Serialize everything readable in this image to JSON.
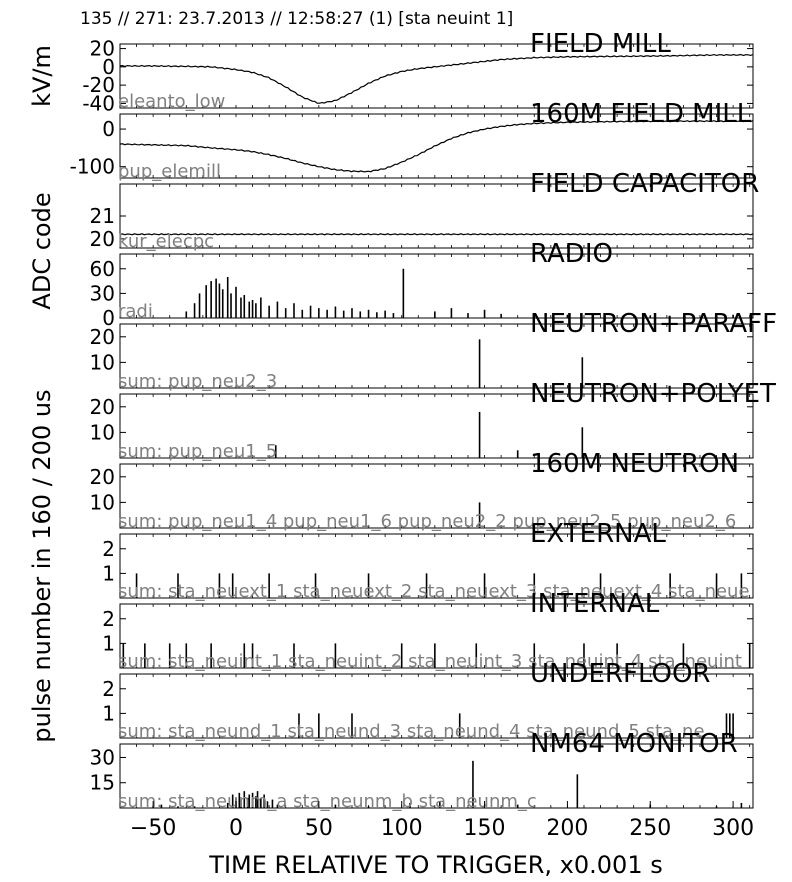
{
  "header": "135 // 271:   23.7.2013 // 12:58:27 (1)  [sta neuint 1]",
  "xlabel": "TIME RELATIVE TO TRIGGER,   x0.001 s",
  "xlim": [
    -70,
    312
  ],
  "xticks": [
    -50,
    0,
    50,
    100,
    150,
    200,
    250,
    300
  ],
  "shared_ylabels": [
    {
      "text": "kV/m",
      "panels": [
        0,
        0
      ]
    },
    {
      "text": "ADC code",
      "panels": [
        2,
        3
      ]
    },
    {
      "text": "pulse number in 160 / 200 us",
      "panels": [
        4,
        10
      ]
    }
  ],
  "chart_data": [
    {
      "type": "line",
      "title": "FIELD MILL",
      "label": "eleanto_low",
      "ylim": [
        -45,
        25
      ],
      "yticks": [
        20,
        0,
        -20,
        -40
      ],
      "x": [
        -70,
        -50,
        -30,
        -15,
        0,
        10,
        20,
        30,
        40,
        50,
        60,
        70,
        80,
        90,
        100,
        110,
        120,
        130,
        140,
        150,
        160,
        170,
        180,
        200,
        230,
        260,
        290,
        300,
        312
      ],
      "values": [
        1,
        1,
        0.5,
        0,
        -3,
        -6,
        -12,
        -22,
        -33,
        -40,
        -37,
        -28,
        -18,
        -10,
        -5,
        -2,
        0,
        2,
        4,
        6,
        8,
        9,
        10,
        11,
        11.5,
        12,
        13,
        13,
        13
      ]
    },
    {
      "type": "line",
      "title": "160M FIELD MILL",
      "label": "pup_elemill",
      "ylim": [
        -130,
        40
      ],
      "yticks": [
        0,
        -100
      ],
      "x": [
        -70,
        -50,
        -30,
        -15,
        0,
        10,
        20,
        30,
        40,
        50,
        60,
        70,
        80,
        90,
        100,
        110,
        120,
        130,
        140,
        150,
        160,
        170,
        180,
        200,
        230,
        260,
        300,
        312
      ],
      "values": [
        -40,
        -42,
        -44,
        -50,
        -55,
        -60,
        -68,
        -78,
        -90,
        -100,
        -108,
        -112,
        -113,
        -105,
        -88,
        -68,
        -45,
        -25,
        -10,
        0,
        7,
        12,
        15,
        18,
        20,
        21,
        21,
        21
      ]
    },
    {
      "type": "line",
      "title": "FIELD CAPACITOR",
      "label": "kur_elecpc",
      "ylim": [
        19.6,
        22.4
      ],
      "yticks": [
        21,
        20
      ],
      "x": [
        -70,
        312
      ],
      "values": [
        20.2,
        20.2
      ]
    },
    {
      "type": "bar",
      "title": "RADIO",
      "label": "radi",
      "ylim": [
        0,
        78
      ],
      "yticks": [
        60,
        30,
        0
      ],
      "x": [
        -30,
        -25,
        -22,
        -18,
        -15,
        -12,
        -10,
        -8,
        -5,
        -3,
        0,
        3,
        5,
        8,
        10,
        12,
        15,
        20,
        25,
        30,
        35,
        40,
        45,
        50,
        55,
        60,
        65,
        70,
        75,
        80,
        85,
        90,
        95,
        101,
        120,
        130,
        140,
        150,
        160,
        200,
        250,
        300
      ],
      "values": [
        8,
        18,
        30,
        40,
        45,
        48,
        42,
        35,
        50,
        30,
        38,
        25,
        28,
        20,
        22,
        18,
        25,
        15,
        20,
        12,
        18,
        10,
        15,
        12,
        10,
        14,
        9,
        12,
        8,
        10,
        7,
        9,
        6,
        60,
        8,
        12,
        6,
        10,
        5,
        4,
        3,
        4
      ]
    },
    {
      "type": "bar",
      "title": "NEUTRON+PARAFF",
      "label": "sum: pup_neu2_3",
      "ylim": [
        0,
        25
      ],
      "yticks": [
        20,
        10
      ],
      "x": [
        147,
        209
      ],
      "values": [
        19,
        12
      ]
    },
    {
      "type": "bar",
      "title": "NEUTRON+POLYET",
      "label": "sum: pup_neu1_5",
      "ylim": [
        0,
        25
      ],
      "yticks": [
        20,
        10
      ],
      "x": [
        24,
        147,
        170,
        209
      ],
      "values": [
        5,
        18,
        3,
        12
      ]
    },
    {
      "type": "bar",
      "title": "160M NEUTRON",
      "label": "sum: pup_neu1_4 pup_neu1_6 pup_neu2_2 pup_neu2_5 pup_neu2_6",
      "ylim": [
        0,
        25
      ],
      "yticks": [
        20,
        10
      ],
      "x": [
        147
      ],
      "values": [
        10
      ]
    },
    {
      "type": "bar",
      "title": "EXTERNAL",
      "label": "sum: sta_neuext_1 sta_neuext_2 sta_neuext_3 sta_neuext_4 sta_neue",
      "ylim": [
        0,
        2.6
      ],
      "yticks": [
        2,
        1
      ],
      "x": [
        -60,
        -35,
        -10,
        -2,
        20,
        48,
        80,
        115,
        150,
        180,
        220,
        262,
        290,
        305
      ],
      "values": [
        1,
        1,
        1,
        1,
        1,
        1,
        1,
        1,
        1,
        1,
        1,
        1,
        1,
        1
      ]
    },
    {
      "type": "bar",
      "title": "INTERNAL",
      "label": "sum: sta_neuint_1 sta_neuint_2 sta_neuint_3 sta_neuint_4 sta_neuint",
      "ylim": [
        0,
        2.6
      ],
      "yticks": [
        2,
        1
      ],
      "x": [
        -68,
        -55,
        -40,
        -30,
        -15,
        5,
        10,
        35,
        60,
        100,
        120,
        145,
        180,
        210,
        230,
        270,
        310
      ],
      "values": [
        1,
        1,
        1,
        1,
        1,
        1,
        1,
        1,
        1,
        1,
        1,
        1,
        1,
        1,
        1,
        1,
        1
      ]
    },
    {
      "type": "bar",
      "title": "UNDERFLOOR",
      "label": "sum: sta_neund_1 sta_neund_3 sta_neund_4 sta_neund_5 sta_ne",
      "ylim": [
        0,
        2.6
      ],
      "yticks": [
        2,
        1
      ],
      "x": [
        38,
        50,
        70,
        135,
        296,
        298,
        300
      ],
      "values": [
        1,
        1,
        1,
        1,
        1,
        1,
        1
      ]
    },
    {
      "type": "bar",
      "title": "NM64 MONITOR",
      "label": "sum: sta_neunm_a sta_neunm_b sta_neunm_c",
      "ylim": [
        0,
        38
      ],
      "yticks": [
        30,
        15
      ],
      "x": [
        -50,
        -45,
        -35,
        -25,
        -5,
        -2,
        0,
        2,
        3,
        5,
        7,
        8,
        10,
        12,
        13,
        15,
        17,
        19,
        22,
        25,
        60,
        80,
        105,
        123,
        143,
        170,
        206,
        250,
        290,
        305
      ],
      "values": [
        1,
        2,
        1,
        1,
        3,
        8,
        6,
        9,
        5,
        10,
        6,
        8,
        9,
        7,
        10,
        6,
        8,
        4,
        5,
        2,
        2,
        1,
        3,
        4,
        28,
        2,
        20,
        2,
        1,
        3
      ]
    }
  ]
}
